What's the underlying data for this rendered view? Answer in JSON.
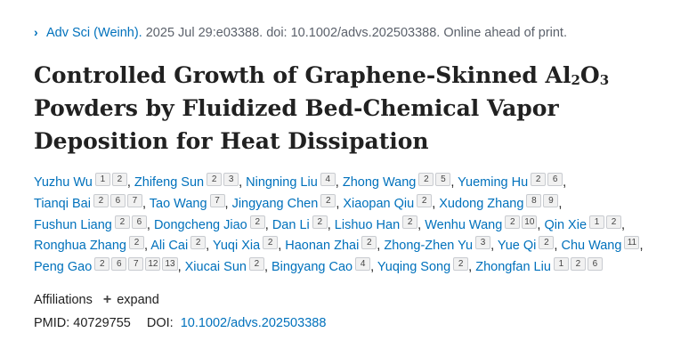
{
  "citation": {
    "journal": "Adv Sci (Weinh).",
    "details": " 2025 Jul 29:e03388. doi: 10.1002/advs.202503388. Online ahead of print."
  },
  "title": {
    "part1": "Controlled Growth of Graphene-Skinned Al",
    "sub1": "2",
    "part2": "O",
    "sub2": "3",
    "part3": " Powders by Fluidized Bed-Chemical Vapor Deposition for Heat Dissipation"
  },
  "authors": [
    {
      "name": "Yuzhu Wu",
      "affs": [
        "1",
        "2"
      ]
    },
    {
      "name": "Zhifeng Sun",
      "affs": [
        "2",
        "3"
      ]
    },
    {
      "name": "Ningning Liu",
      "affs": [
        "4"
      ]
    },
    {
      "name": "Zhong Wang",
      "affs": [
        "2",
        "5"
      ]
    },
    {
      "name": "Yueming Hu",
      "affs": [
        "2",
        "6"
      ]
    },
    {
      "name": "Tianqi Bai",
      "affs": [
        "2",
        "6",
        "7"
      ]
    },
    {
      "name": "Tao Wang",
      "affs": [
        "7"
      ]
    },
    {
      "name": "Jingyang Chen",
      "affs": [
        "2"
      ]
    },
    {
      "name": "Xiaopan Qiu",
      "affs": [
        "2"
      ]
    },
    {
      "name": "Xudong Zhang",
      "affs": [
        "8",
        "9"
      ]
    },
    {
      "name": "Fushun Liang",
      "affs": [
        "2",
        "6"
      ]
    },
    {
      "name": "Dongcheng Jiao",
      "affs": [
        "2"
      ]
    },
    {
      "name": "Dan Li",
      "affs": [
        "2"
      ]
    },
    {
      "name": "Lishuo Han",
      "affs": [
        "2"
      ]
    },
    {
      "name": "Wenhu Wang",
      "affs": [
        "2",
        "10"
      ]
    },
    {
      "name": "Qin Xie",
      "affs": [
        "1",
        "2"
      ]
    },
    {
      "name": "Ronghua Zhang",
      "affs": [
        "2"
      ]
    },
    {
      "name": "Ali Cai",
      "affs": [
        "2"
      ]
    },
    {
      "name": "Yuqi Xia",
      "affs": [
        "2"
      ]
    },
    {
      "name": "Haonan Zhai",
      "affs": [
        "2"
      ]
    },
    {
      "name": "Zhong-Zhen Yu",
      "affs": [
        "3"
      ]
    },
    {
      "name": "Yue Qi",
      "affs": [
        "2"
      ]
    },
    {
      "name": "Chu Wang",
      "affs": [
        "11"
      ]
    },
    {
      "name": "Peng Gao",
      "affs": [
        "2",
        "6",
        "7",
        "12",
        "13"
      ]
    },
    {
      "name": "Xiucai Sun",
      "affs": [
        "2"
      ]
    },
    {
      "name": "Bingyang Cao",
      "affs": [
        "4"
      ]
    },
    {
      "name": "Yuqing Song",
      "affs": [
        "2"
      ]
    },
    {
      "name": "Zhongfan Liu",
      "affs": [
        "1",
        "2",
        "6"
      ]
    }
  ],
  "affiliations": {
    "label": "Affiliations",
    "expand_icon": "plus-icon",
    "expand_label": "expand"
  },
  "identifiers": {
    "pmid": "PMID: 40729755",
    "doi_label": "DOI:",
    "doi_value": "10.1002/advs.202503388"
  },
  "colors": {
    "link": "#0071bc",
    "text": "#212121",
    "muted": "#5b616b"
  }
}
